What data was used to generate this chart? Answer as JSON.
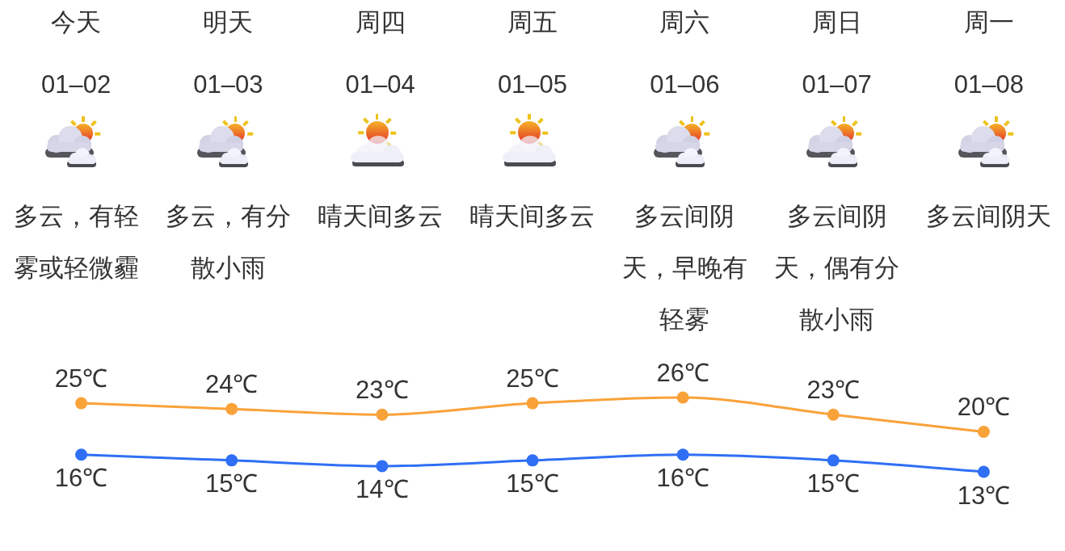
{
  "chart_data": {
    "type": "line",
    "categories": [
      "今天",
      "明天",
      "周四",
      "周五",
      "周六",
      "周日",
      "周一"
    ],
    "series": [
      {
        "color": "#f9a23a",
        "values": [
          25,
          24,
          23,
          25,
          26,
          23,
          20
        ],
        "value_labels": [
          "25℃",
          "24℃",
          "23℃",
          "25℃",
          "26℃",
          "23℃",
          "20℃"
        ]
      },
      {
        "color": "#2f6ff5",
        "values": [
          16,
          15,
          14,
          15,
          16,
          15,
          13
        ],
        "value_labels": [
          "16℃",
          "15℃",
          "14℃",
          "15℃",
          "16℃",
          "15℃",
          "13℃"
        ]
      }
    ],
    "marker": "circle",
    "line_style": "solid",
    "tick_labels": "x",
    "annotations": [
      "01–02",
      "01–03",
      "01–04",
      "01–05",
      "01–06",
      "01–07",
      "01–08",
      "多云，有轻雾或轻微霾",
      "多云，有分散小雨",
      "晴天间多云",
      "晴天间多云",
      "多云间阴天，早晚有轻雾",
      "多云间阴天，偶有分散小雨",
      "多云间阴天"
    ]
  }
}
